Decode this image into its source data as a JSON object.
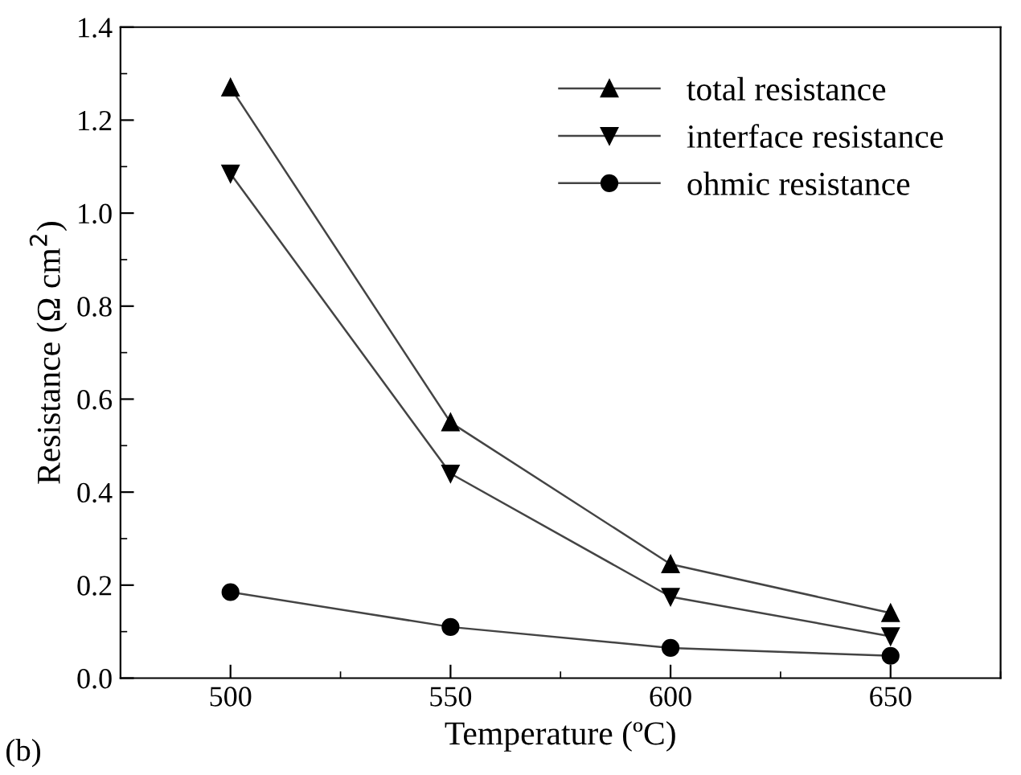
{
  "chart_data": {
    "type": "line",
    "xlabel": "Temperature (ºC)",
    "ylabel": "Resistance (Ω cm$^{2}$)",
    "x": [
      500,
      550,
      600,
      650
    ],
    "series": [
      {
        "name": "total resistance",
        "color": "#000000",
        "marker": "triangle",
        "values": [
          1.27,
          0.55,
          0.245,
          0.14
        ]
      },
      {
        "name": "interface resistance",
        "color": "#000000",
        "marker": "triangle_down",
        "values": [
          1.085,
          0.44,
          0.175,
          0.09
        ]
      },
      {
        "name": "ohmic resistance",
        "color": "#000000",
        "marker": "circle",
        "values": [
          0.185,
          0.11,
          0.065,
          0.048
        ]
      }
    ],
    "xlim": [
      475,
      675
    ],
    "ylim": [
      0,
      1.4
    ],
    "xticks": [
      500,
      550,
      600,
      650
    ],
    "yticks": [
      {
        "value": 0,
        "label": "0.0"
      },
      0.2,
      0.4,
      0.6,
      0.8,
      {
        "value": 1.0,
        "label": "1.0"
      },
      1.2,
      1.4
    ],
    "legend": "top right",
    "grid": false,
    "line_style": "solid",
    "annotations": [
      "(b)"
    ]
  }
}
